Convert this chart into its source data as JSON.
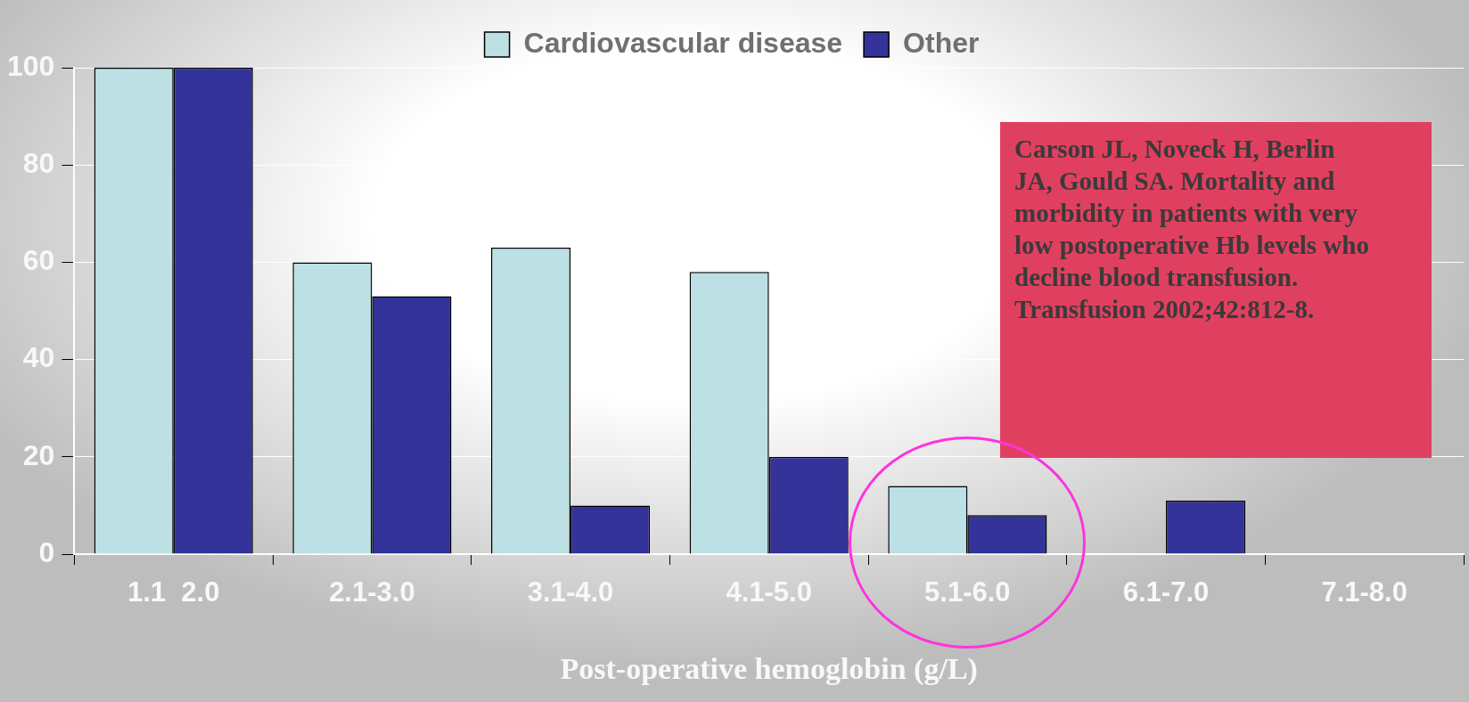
{
  "chart_data": {
    "type": "bar",
    "xlabel": "Post-operative hemoglobin (g/L)",
    "categories": [
      "1.1  2.0",
      "2.1-3.0",
      "3.1-4.0",
      "4.1-5.0",
      "5.1-6.0",
      "6.1-7.0",
      "7.1-8.0"
    ],
    "series": [
      {
        "name": "Cardiovascular disease",
        "color": "#bce0e3",
        "values": [
          100,
          60,
          63,
          58,
          14,
          null,
          null
        ]
      },
      {
        "name": "Other",
        "color": "#333399",
        "values": [
          100,
          53,
          10,
          20,
          8,
          11,
          null
        ]
      }
    ],
    "ylim": [
      0,
      100
    ],
    "yticks": [
      0,
      20,
      40,
      60,
      80,
      100
    ],
    "grid": "y",
    "legend": "top",
    "annotations": [
      "Carson JL, Noveck H, Berlin JA, Gould SA. Mortality and morbidity in patients with very low postoperative Hb levels who decline blood transfusion. Transfusion 2002;42:812-8."
    ]
  }
}
